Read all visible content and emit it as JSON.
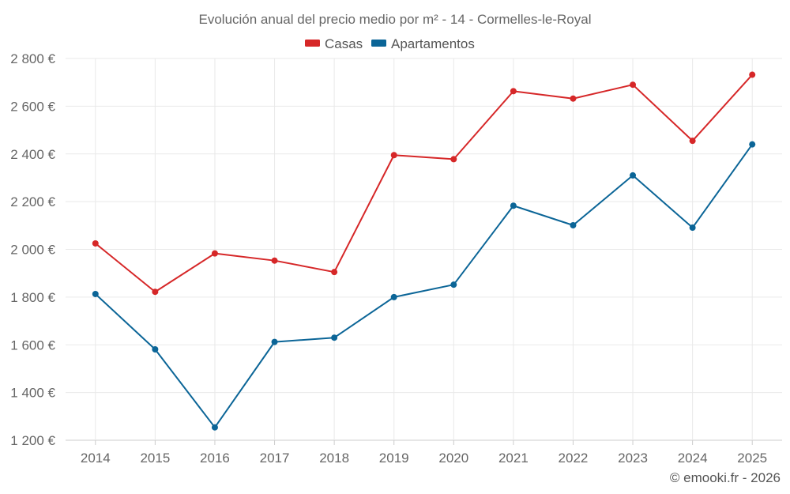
{
  "chart_data": {
    "type": "line",
    "title": "Evolución anual del precio medio por m² - 14 - Cormelles-le-Royal",
    "categories": [
      "2014",
      "2015",
      "2016",
      "2017",
      "2018",
      "2019",
      "2020",
      "2021",
      "2022",
      "2023",
      "2024",
      "2025"
    ],
    "series": [
      {
        "name": "Casas",
        "color": "#d62728",
        "values": [
          2025,
          1822,
          1983,
          1953,
          1905,
          2395,
          2378,
          2663,
          2632,
          2690,
          2455,
          2732
        ]
      },
      {
        "name": "Apartamentos",
        "color": "#0b6597",
        "values": [
          1813,
          1581,
          1254,
          1612,
          1630,
          1800,
          1852,
          2183,
          2101,
          2310,
          2091,
          2440
        ]
      }
    ],
    "ylim": [
      1200,
      2800
    ],
    "yticks": [
      1200,
      1400,
      1600,
      1800,
      2000,
      2200,
      2400,
      2600,
      2800
    ],
    "ytick_labels": [
      "1 200 €",
      "1 400 €",
      "1 600 €",
      "1 800 €",
      "2 000 €",
      "2 200 €",
      "2 400 €",
      "2 600 €",
      "2 800 €"
    ],
    "xlabel": "",
    "ylabel": "",
    "grid": true,
    "legend_position": "top-center",
    "credit": "© emooki.fr - 2026"
  }
}
